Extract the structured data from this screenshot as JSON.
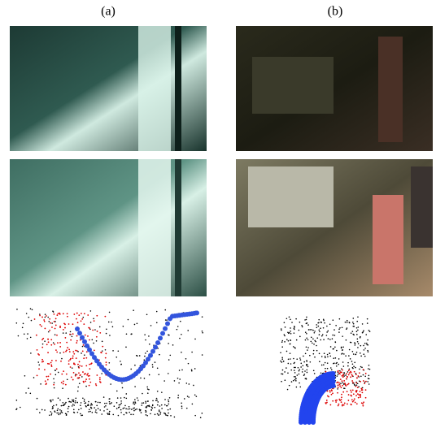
{
  "columns": [
    {
      "label": "(a)"
    },
    {
      "label": "(b)"
    }
  ]
}
